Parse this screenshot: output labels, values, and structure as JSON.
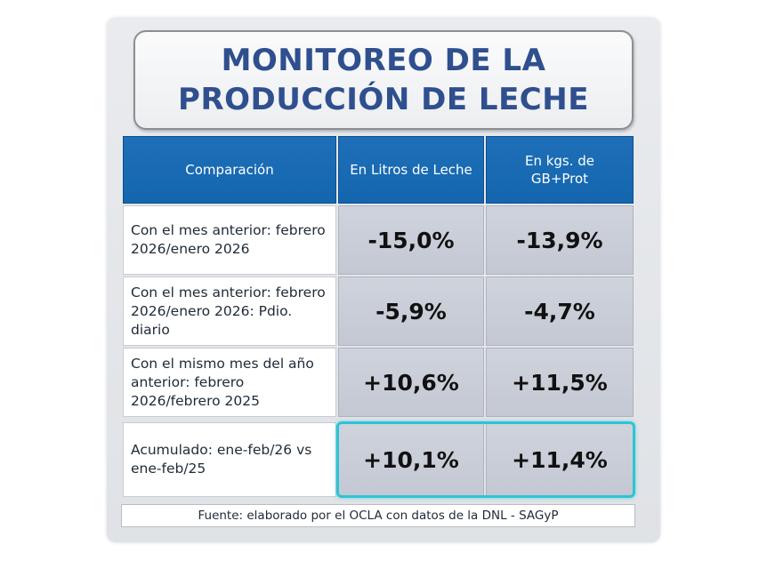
{
  "title": {
    "line1": "MONITOREO DE LA",
    "line2": "PRODUCCIÓN DE LECHE"
  },
  "table": {
    "headers": [
      "Comparación",
      "En Litros de Leche",
      "En kgs. de GB+Prot"
    ],
    "rows": [
      {
        "label": "Con el mes anterior: febrero 2026/enero 2026",
        "litros": "-15,0%",
        "kgs": "-13,9%"
      },
      {
        "label": "Con el mes anterior: febrero 2026/enero 2026: Pdio. diario",
        "litros": "-5,9%",
        "kgs": "-4,7%"
      },
      {
        "label": "Con el mismo mes del año anterior: febrero 2026/febrero 2025",
        "litros": "+10,6%",
        "kgs": "+11,5%"
      },
      {
        "label": "Acumulado: ene-feb/26 vs ene-feb/25",
        "litros": "+10,1%",
        "kgs": "+11,4%"
      }
    ]
  },
  "source": "Fuente: elaborado por el OCLA con datos de la DNL - SAGyP",
  "colors": {
    "title": "#2f4f8f",
    "header_bg": "#1f6fb8",
    "value_bg": "#cfd3dc",
    "highlight": "#2cc4d4"
  }
}
